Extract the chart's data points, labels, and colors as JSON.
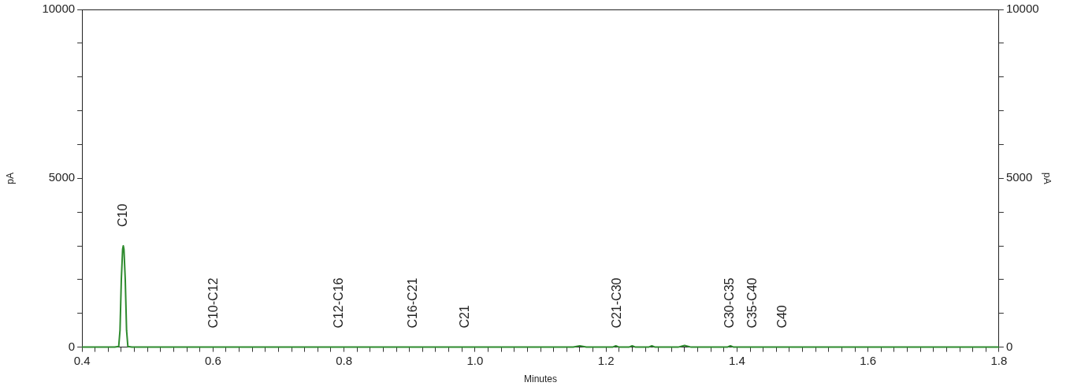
{
  "chart_data": {
    "type": "line",
    "xlabel": "Minutes",
    "ylabel": "pA",
    "y2label": "pA",
    "xlim": [
      0.4,
      1.8
    ],
    "xticks": [
      0.4,
      {
        "value": 0.42,
        "label": null
      },
      {
        "value": 0.44,
        "label": null
      },
      {
        "value": 0.46,
        "label": null
      },
      {
        "value": 0.48,
        "label": null
      },
      {
        "value": 0.5,
        "label": null
      },
      {
        "value": 0.52,
        "label": null
      },
      {
        "value": 0.54,
        "label": null
      },
      {
        "value": 0.56,
        "label": null
      },
      {
        "value": 0.58,
        "label": null
      },
      0.6,
      {
        "value": 0.62,
        "label": null
      },
      {
        "value": 0.64,
        "label": null
      },
      {
        "value": 0.66,
        "label": null
      },
      {
        "value": 0.68,
        "label": null
      },
      {
        "value": 0.7,
        "label": null
      },
      {
        "value": 0.72,
        "label": null
      },
      {
        "value": 0.74,
        "label": null
      },
      {
        "value": 0.76,
        "label": null
      },
      {
        "value": 0.78,
        "label": null
      },
      0.8,
      {
        "value": 0.82,
        "label": null
      },
      {
        "value": 0.84,
        "label": null
      },
      {
        "value": 0.86,
        "label": null
      },
      {
        "value": 0.88,
        "label": null
      },
      {
        "value": 0.9,
        "label": null
      },
      {
        "value": 0.92,
        "label": null
      },
      {
        "value": 0.94,
        "label": null
      },
      {
        "value": 0.96,
        "label": null
      },
      {
        "value": 0.98,
        "label": null
      },
      {
        "value": 1.0,
        "label": "1.0"
      },
      {
        "value": 1.02,
        "label": null
      },
      {
        "value": 1.04,
        "label": null
      },
      {
        "value": 1.06,
        "label": null
      },
      {
        "value": 1.08,
        "label": null
      },
      {
        "value": 1.1,
        "label": null
      },
      {
        "value": 1.12,
        "label": null
      },
      {
        "value": 1.14,
        "label": null
      },
      {
        "value": 1.16,
        "label": null
      },
      {
        "value": 1.18,
        "label": null
      },
      1.2,
      {
        "value": 1.22,
        "label": null
      },
      {
        "value": 1.24,
        "label": null
      },
      {
        "value": 1.26,
        "label": null
      },
      {
        "value": 1.28,
        "label": null
      },
      {
        "value": 1.3,
        "label": null
      },
      {
        "value": 1.32,
        "label": null
      },
      {
        "value": 1.34,
        "label": null
      },
      {
        "value": 1.36,
        "label": null
      },
      {
        "value": 1.38,
        "label": null
      },
      1.4,
      {
        "value": 1.42,
        "label": null
      },
      {
        "value": 1.44,
        "label": null
      },
      {
        "value": 1.46,
        "label": null
      },
      {
        "value": 1.48,
        "label": null
      },
      {
        "value": 1.5,
        "label": null
      },
      {
        "value": 1.52,
        "label": null
      },
      {
        "value": 1.54,
        "label": null
      },
      {
        "value": 1.56,
        "label": null
      },
      {
        "value": 1.58,
        "label": null
      },
      1.6,
      {
        "value": 1.62,
        "label": null
      },
      {
        "value": 1.64,
        "label": null
      },
      {
        "value": 1.66,
        "label": null
      },
      {
        "value": 1.68,
        "label": null
      },
      {
        "value": 1.7,
        "label": null
      },
      {
        "value": 1.72,
        "label": null
      },
      {
        "value": 1.74,
        "label": null
      },
      {
        "value": 1.76,
        "label": null
      },
      {
        "value": 1.78,
        "label": null
      },
      1.8
    ],
    "ylim": [
      0,
      10000
    ],
    "yticks": [
      0,
      {
        "value": 1000,
        "label": null
      },
      {
        "value": 2000,
        "label": null
      },
      {
        "value": 3000,
        "label": null
      },
      {
        "value": 4000,
        "label": null
      },
      5000,
      {
        "value": 6000,
        "label": null
      },
      {
        "value": 7000,
        "label": null
      },
      {
        "value": 8000,
        "label": null
      },
      {
        "value": 9000,
        "label": null
      },
      10000
    ],
    "y2lim": [
      0,
      10000
    ],
    "y2ticks": [
      0,
      {
        "value": 1000,
        "label": null
      },
      {
        "value": 2000,
        "label": null
      },
      {
        "value": 3000,
        "label": null
      },
      {
        "value": 4000,
        "label": null
      },
      5000,
      {
        "value": 6000,
        "label": null
      },
      {
        "value": 7000,
        "label": null
      },
      {
        "value": 8000,
        "label": null
      },
      {
        "value": 9000,
        "label": null
      },
      10000
    ],
    "grid": false,
    "legend": false,
    "marker": "none",
    "line_style": "solid",
    "series": [
      {
        "color": "#2e8b2e",
        "x": [
          0.4,
          0.45,
          0.456,
          0.458,
          0.46,
          0.462,
          0.463,
          0.464,
          0.466,
          0.468,
          0.47,
          0.476,
          0.6,
          0.8,
          1.0,
          1.15,
          1.16,
          1.17,
          1.21,
          1.215,
          1.22,
          1.235,
          1.24,
          1.245,
          1.265,
          1.27,
          1.275,
          1.31,
          1.32,
          1.33,
          1.385,
          1.39,
          1.395,
          1.5,
          1.8
        ],
        "values": [
          0,
          0,
          20,
          500,
          2000,
          2900,
          3000,
          2900,
          2000,
          500,
          20,
          0,
          0,
          0,
          0,
          0,
          40,
          0,
          0,
          40,
          0,
          0,
          40,
          0,
          0,
          40,
          0,
          0,
          50,
          0,
          0,
          40,
          0,
          0,
          0
        ]
      }
    ],
    "annotations": [
      {
        "text": "C10",
        "x": 0.463,
        "y": 3000
      },
      {
        "text": "C10-C12",
        "x": 0.601,
        "y": 0
      },
      {
        "text": "C12-C16",
        "x": 0.793,
        "y": 0
      },
      {
        "text": "C16-C21",
        "x": 0.906,
        "y": 0
      },
      {
        "text": "C21",
        "x": 0.985,
        "y": 0
      },
      {
        "text": "C21-C30",
        "x": 1.218,
        "y": 0
      },
      {
        "text": "C30-C35",
        "x": 1.389,
        "y": 0
      },
      {
        "text": "C35-C40",
        "x": 1.424,
        "y": 0
      },
      {
        "text": "C40",
        "x": 1.47,
        "y": 0
      }
    ]
  }
}
